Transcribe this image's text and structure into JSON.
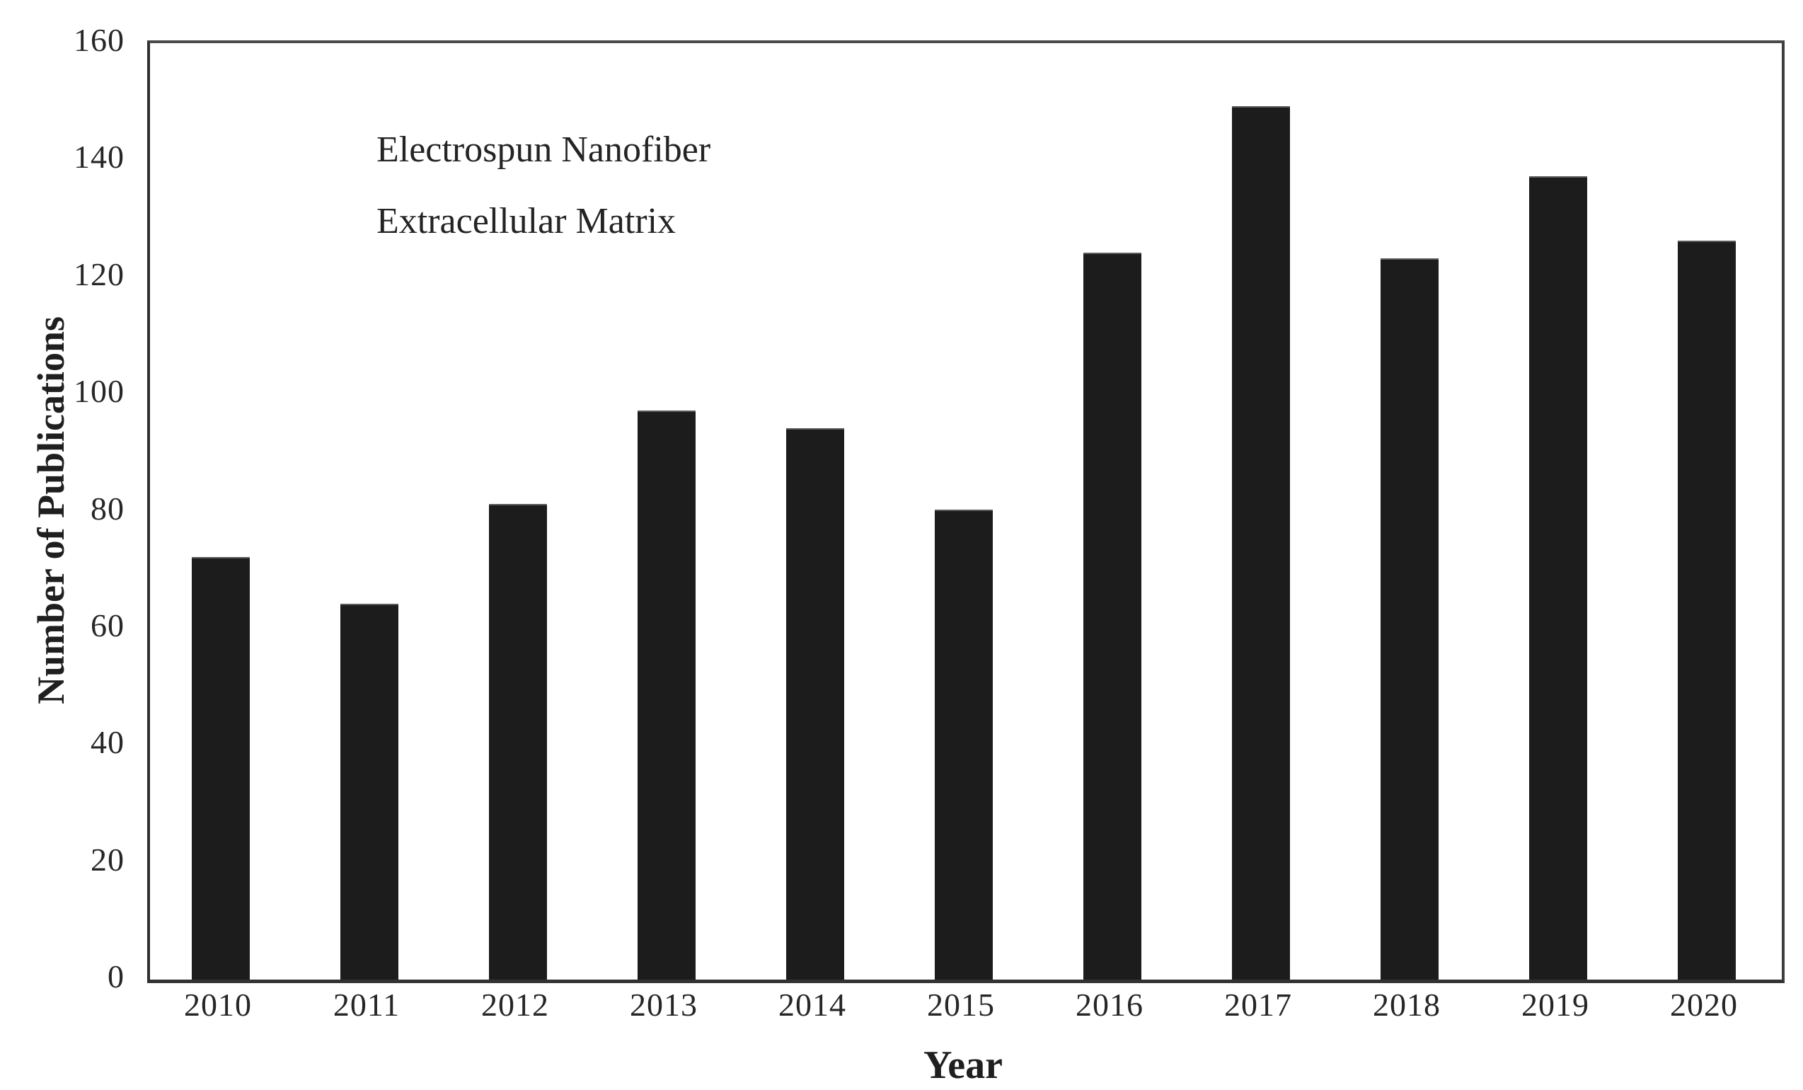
{
  "figure": {
    "background_color": "#ffffff",
    "frame_color": "#3d3d3d",
    "text_color": "#1f1f1f",
    "bar_color": "#1c1c1c"
  },
  "chart_data": {
    "type": "bar",
    "title": "",
    "categories": [
      "2010",
      "2011",
      "2012",
      "2013",
      "2014",
      "2015",
      "2016",
      "2017",
      "2018",
      "2019",
      "2020"
    ],
    "values": [
      72,
      64,
      81,
      97,
      94,
      80,
      124,
      149,
      123,
      137,
      126
    ],
    "xlabel": "Year",
    "ylabel": "Number of Publications",
    "ylim": [
      0,
      160
    ],
    "yticks": [
      0,
      20,
      40,
      60,
      80,
      100,
      120,
      140,
      160
    ],
    "grid": false,
    "legend_position": "none",
    "annotations": [
      {
        "text": "Electrospun Nanofiber"
      },
      {
        "text": "Extracellular Matrix"
      }
    ]
  }
}
